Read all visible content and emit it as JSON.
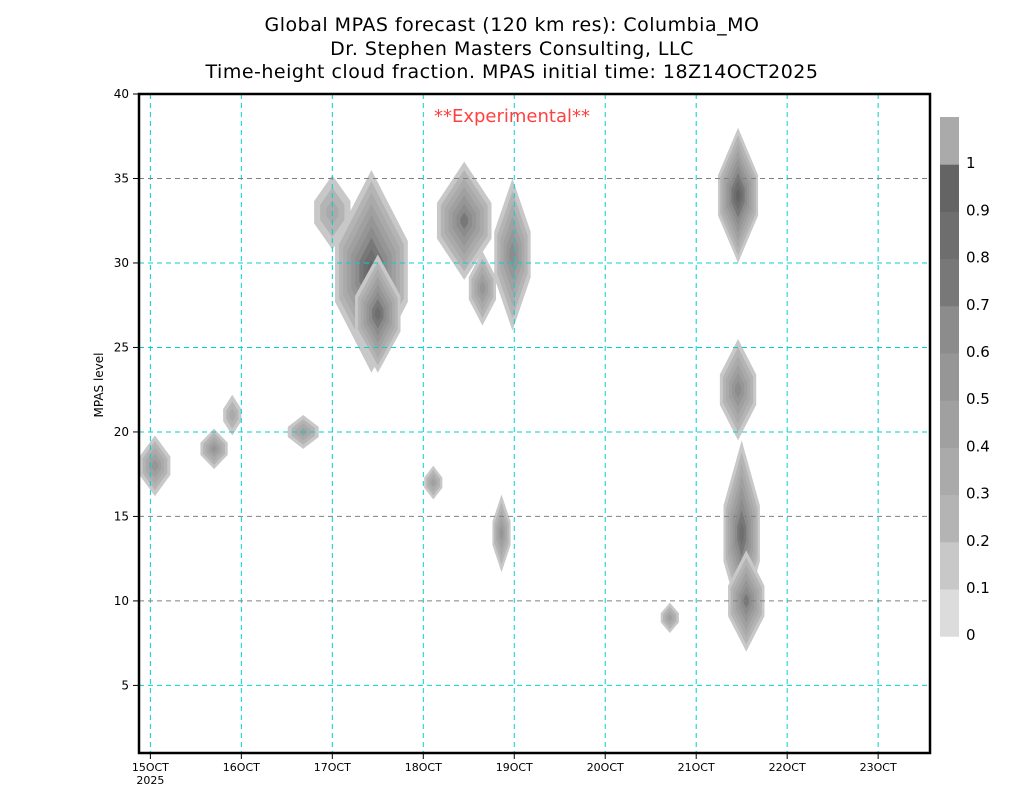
{
  "chart_data": {
    "type": "heatmap",
    "title": [
      "Global MPAS forecast (120 km res): Columbia_MO",
      "Dr. Stephen Masters Consulting, LLC",
      "Time-height cloud fraction.   MPAS initial time: 18Z14OCT2025"
    ],
    "annotation": "**Experimental**",
    "ylabel": "MPAS level",
    "xlabel": "",
    "xlim_days_from_15OCT": [
      -0.125,
      8.57
    ],
    "ylim": [
      1,
      40
    ],
    "x_ticks": [
      {
        "v": 0,
        "label": "15OCT",
        "sub": "2025"
      },
      {
        "v": 1,
        "label": "16OCT"
      },
      {
        "v": 2,
        "label": "17OCT"
      },
      {
        "v": 3,
        "label": "18OCT"
      },
      {
        "v": 4,
        "label": "19OCT"
      },
      {
        "v": 5,
        "label": "20OCT"
      },
      {
        "v": 6,
        "label": "21OCT"
      },
      {
        "v": 7,
        "label": "22OCT"
      },
      {
        "v": 8,
        "label": "23OCT"
      }
    ],
    "y_ticks": [
      5,
      10,
      15,
      20,
      25,
      30,
      35,
      40
    ],
    "colorbar": {
      "labels": [
        "0",
        "0.1",
        "0.2",
        "0.3",
        "0.4",
        "0.5",
        "0.6",
        "0.7",
        "0.8",
        "0.9",
        "1"
      ],
      "colors": [
        "#dcdcdc",
        "#c8c8c8",
        "#b4b4b4",
        "#aaaaaa",
        "#a0a0a0",
        "#969696",
        "#8c8c8c",
        "#787878",
        "#6e6e6e",
        "#646464",
        "#aaaaaa"
      ]
    },
    "blobs": [
      {
        "t": 0.05,
        "lev": 18,
        "dt": 0.17,
        "dlev": 1.8,
        "max": 0.5
      },
      {
        "t": 0.7,
        "lev": 19,
        "dt": 0.15,
        "dlev": 1.2,
        "max": 0.5
      },
      {
        "t": 0.9,
        "lev": 21,
        "dt": 0.1,
        "dlev": 1.2,
        "max": 0.3
      },
      {
        "t": 1.68,
        "lev": 20,
        "dt": 0.17,
        "dlev": 1.0,
        "max": 0.4
      },
      {
        "t": 2.0,
        "lev": 33,
        "dt": 0.2,
        "dlev": 2.2,
        "max": 0.3
      },
      {
        "t": 2.43,
        "lev": 29.5,
        "dt": 0.4,
        "dlev": 6,
        "max": 0.9
      },
      {
        "t": 2.5,
        "lev": 27,
        "dt": 0.25,
        "dlev": 3.5,
        "max": 0.8
      },
      {
        "t": 3.45,
        "lev": 32.5,
        "dt": 0.3,
        "dlev": 3.5,
        "max": 0.7
      },
      {
        "t": 3.65,
        "lev": 28.5,
        "dt": 0.15,
        "dlev": 2.2,
        "max": 0.5
      },
      {
        "t": 3.98,
        "lev": 30.5,
        "dt": 0.2,
        "dlev": 4.5,
        "max": 0.6
      },
      {
        "t": 3.11,
        "lev": 17,
        "dt": 0.1,
        "dlev": 1.0,
        "max": 0.4
      },
      {
        "t": 3.86,
        "lev": 14,
        "dt": 0.1,
        "dlev": 2.3,
        "max": 0.5
      },
      {
        "t": 5.71,
        "lev": 9,
        "dt": 0.1,
        "dlev": 0.9,
        "max": 0.4
      },
      {
        "t": 6.46,
        "lev": 34,
        "dt": 0.22,
        "dlev": 4,
        "max": 0.9
      },
      {
        "t": 6.46,
        "lev": 22.5,
        "dt": 0.2,
        "dlev": 3,
        "max": 0.6
      },
      {
        "t": 6.5,
        "lev": 14,
        "dt": 0.2,
        "dlev": 5.5,
        "max": 0.8
      },
      {
        "t": 6.55,
        "lev": 10,
        "dt": 0.2,
        "dlev": 3,
        "max": 0.7
      }
    ]
  }
}
